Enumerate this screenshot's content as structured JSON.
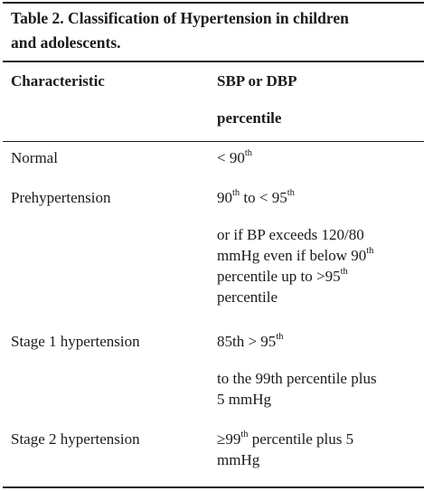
{
  "caption": {
    "line1": "Table 2. Classification of Hypertension in children",
    "line2": "and adolescents."
  },
  "header": {
    "col1": "Characteristic",
    "col2_line1": "SBP or DBP",
    "col2_line2": "percentile"
  },
  "rows": [
    {
      "characteristic": "Normal",
      "value_prefix": "< 90",
      "value_sup": "th"
    },
    {
      "characteristic": "Prehypertension",
      "v1_a": "90",
      "v1_sup_a": "th",
      "v1_b": " to < 95",
      "v1_sup_b": "th",
      "v2_line1": "or if BP exceeds 120/80",
      "v2_line2_a": "mmHg even if below 90",
      "v2_line2_sup": "th",
      "v2_line3_a": "percentile up to >95",
      "v2_line3_sup": "th",
      "v2_line4": "percentile"
    },
    {
      "characteristic": "Stage 1 hypertension",
      "v1_a": "85th > 95",
      "v1_sup": "th",
      "v2_line1": "to the 99th percentile plus",
      "v2_line2": "5 mmHg"
    },
    {
      "characteristic": "Stage 2 hypertension",
      "v1_a": "≥99",
      "v1_sup": "th",
      "v1_b": " percentile plus 5",
      "v1_line2": "mmHg"
    }
  ]
}
